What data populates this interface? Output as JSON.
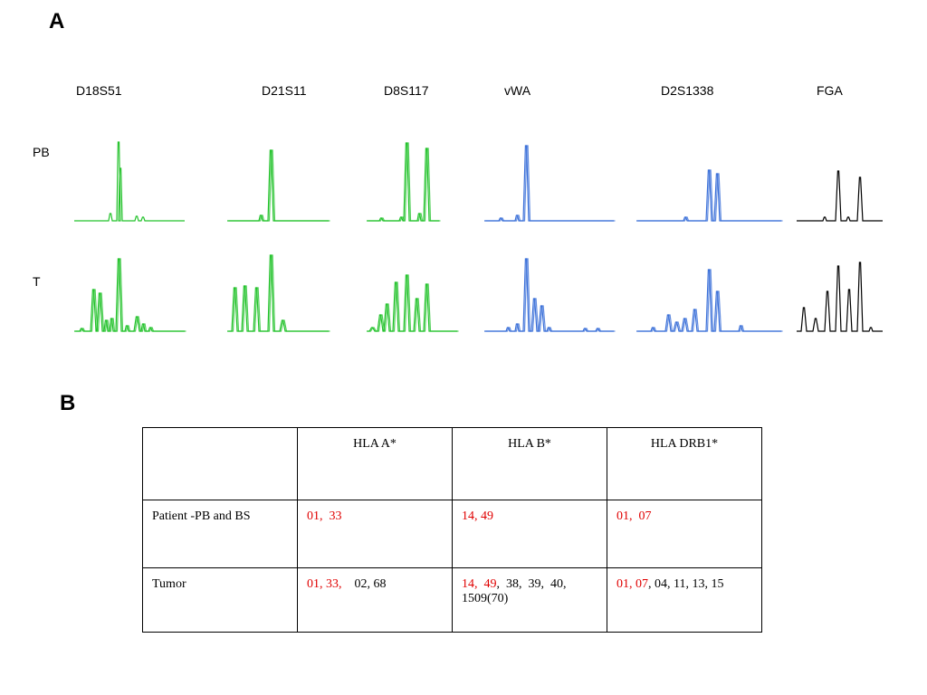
{
  "panel_a": {
    "letter": "A",
    "loci": [
      "D18S51",
      "D21S11",
      "D8S117",
      "vWA",
      "D2S1338",
      "FGA"
    ],
    "rows": [
      "PB",
      "T"
    ],
    "colors": {
      "green": "#22c22a",
      "blue": "#3a6fd8",
      "black": "#000000"
    }
  },
  "panel_b": {
    "letter": "B",
    "headers": [
      "",
      "HLA A*",
      "HLA B*",
      "HLA DRB1*"
    ],
    "rows": [
      {
        "label": "Patient -PB and BS",
        "cells": [
          [
            {
              "text": "01,  33",
              "color": "red"
            }
          ],
          [
            {
              "text": "14, 49",
              "color": "red"
            }
          ],
          [
            {
              "text": "01,  07",
              "color": "red"
            }
          ]
        ]
      },
      {
        "label": "Tumor",
        "cells": [
          [
            {
              "text": "01, 33,",
              "color": "red"
            },
            {
              "text": "    02, 68",
              "color": "black"
            }
          ],
          [
            {
              "text": "14,  49",
              "color": "red"
            },
            {
              "text": ",  38,  39,  40, 1509(70)",
              "color": "black"
            }
          ],
          [
            {
              "text": "01, 07",
              "color": "red"
            },
            {
              "text": ", 04, 11, 13, 15",
              "color": "black"
            }
          ]
        ]
      }
    ]
  }
}
